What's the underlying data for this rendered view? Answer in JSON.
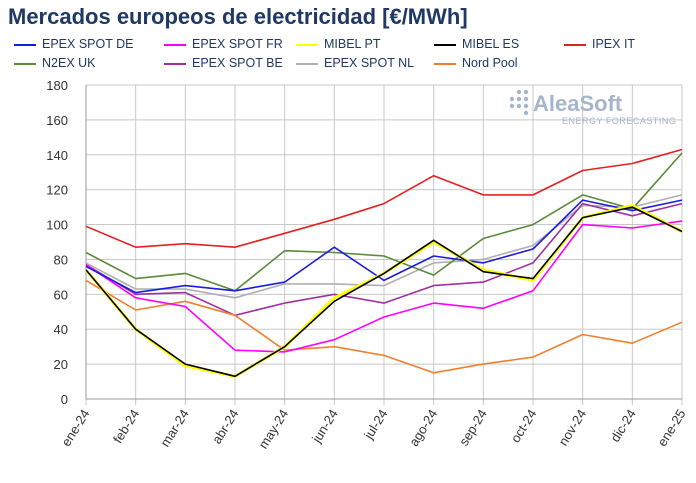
{
  "chart_data": {
    "type": "line",
    "title": "Mercados europeos de electricidad [€/MWh]",
    "xlabel": "",
    "ylabel": "",
    "ylim": [
      0,
      180
    ],
    "yticks": [
      0,
      20,
      40,
      60,
      80,
      100,
      120,
      140,
      160,
      180
    ],
    "grid": true,
    "legend_position": "top",
    "categories": [
      "ene-24",
      "feb-24",
      "mar-24",
      "abr-24",
      "may-24",
      "jun-24",
      "jul-24",
      "ago-24",
      "sep-24",
      "oct-24",
      "nov-24",
      "dic-24",
      "ene-25"
    ],
    "series": [
      {
        "name": "EPEX SPOT DE",
        "color": "#1c1ce0",
        "values": [
          76,
          61,
          65,
          62,
          67,
          87,
          68,
          82,
          78,
          86,
          114,
          108,
          114
        ]
      },
      {
        "name": "EPEX SPOT FR",
        "color": "#ff00ff",
        "values": [
          77,
          58,
          53,
          28,
          27,
          34,
          47,
          55,
          52,
          62,
          100,
          98,
          102
        ]
      },
      {
        "name": "MIBEL PT",
        "color": "#ffff00",
        "values": [
          74,
          40,
          19,
          13,
          30,
          58,
          72,
          90,
          74,
          68,
          104,
          111,
          96
        ]
      },
      {
        "name": "MIBEL ES",
        "color": "#000000",
        "values": [
          74,
          40,
          20,
          13,
          30,
          56,
          72,
          91,
          73,
          69,
          104,
          110,
          96
        ]
      },
      {
        "name": "IPEX IT",
        "color": "#e62020",
        "values": [
          99,
          87,
          89,
          87,
          95,
          103,
          112,
          128,
          117,
          117,
          131,
          135,
          143
        ]
      },
      {
        "name": "N2EX UK",
        "color": "#5b8a3a",
        "values": [
          84,
          69,
          72,
          62,
          85,
          84,
          82,
          71,
          92,
          100,
          117,
          109,
          141
        ]
      },
      {
        "name": "EPEX SPOT BE",
        "color": "#a030a0",
        "values": [
          77,
          60,
          61,
          48,
          55,
          60,
          55,
          65,
          67,
          78,
          112,
          105,
          112
        ]
      },
      {
        "name": "EPEX SPOT NL",
        "color": "#b0b0b0",
        "values": [
          78,
          63,
          63,
          58,
          66,
          66,
          65,
          78,
          80,
          88,
          111,
          110,
          117
        ]
      },
      {
        "name": "Nord Pool",
        "color": "#f08030",
        "values": [
          68,
          51,
          56,
          48,
          28,
          30,
          25,
          15,
          20,
          24,
          37,
          32,
          44
        ]
      }
    ]
  },
  "logo": {
    "name": "AleaSoft",
    "tagline": "ENERGY FORECASTING"
  },
  "colors": {
    "title": "#1f3864",
    "grid": "#c8c8c8",
    "axis": "#999999"
  }
}
